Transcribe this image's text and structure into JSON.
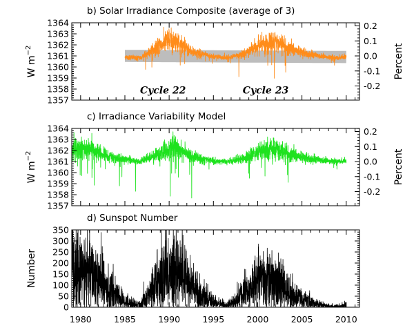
{
  "chart_data": [
    {
      "type": "line",
      "title": "b) Solar Irradiance Composite (average of 3)",
      "ylabel": "W m",
      "ylabel_superscript": "−2",
      "y2label": "Percent",
      "ylim": [
        1357,
        1364
      ],
      "yticks": [
        1357,
        1358,
        1359,
        1360,
        1361,
        1362,
        1363,
        1364
      ],
      "y2lim": [
        -0.2941,
        0.2207
      ],
      "y2ticks": [
        "-0.2",
        "-0.1",
        "0.0",
        "0.1",
        "0.2"
      ],
      "y2tick_values": [
        -0.2,
        -0.1,
        0.0,
        0.1,
        0.2
      ],
      "xlim": [
        1979,
        2011.5
      ],
      "annotations": [
        {
          "text": "Cycle 22",
          "x": 1989.3,
          "y": 1357.6
        },
        {
          "text": "Cycle 23",
          "x": 2000.9,
          "y": 1357.6
        }
      ],
      "series": [
        {
          "name": "composite",
          "color": "#ff8c1a",
          "style": "noisy",
          "x_start": 1985.0,
          "x_end": 2010.0,
          "base": 1360.9,
          "knots": [
            [
              1985.0,
              1360.9
            ],
            [
              1986.7,
              1360.8
            ],
            [
              1988.5,
              1361.7
            ],
            [
              1989.9,
              1362.4
            ],
            [
              1991.0,
              1362.2
            ],
            [
              1992.5,
              1361.4
            ],
            [
              1994.5,
              1361.0
            ],
            [
              1996.6,
              1360.8
            ],
            [
              1998.5,
              1361.2
            ],
            [
              2000.0,
              1361.9
            ],
            [
              2002.0,
              1362.3
            ],
            [
              2003.5,
              1361.7
            ],
            [
              2005.5,
              1361.2
            ],
            [
              2008.7,
              1360.8
            ],
            [
              2010.0,
              1360.9
            ]
          ],
          "noise": 0.3,
          "spike_down": 1.1,
          "spike_down_max": 2.3
        },
        {
          "name": "uncertainty band",
          "color": "#bdbdbd",
          "style": "band",
          "x_start": 1985.0,
          "x_end": 2010.0,
          "lower": [
            [
              1985.0,
              1360.45
            ],
            [
              2010.0,
              1360.35
            ]
          ],
          "upper": [
            [
              1985.0,
              1361.55
            ],
            [
              2010.0,
              1361.45
            ]
          ]
        }
      ]
    },
    {
      "type": "line",
      "title": "c) Irradiance Variability Model",
      "ylabel": "W m",
      "ylabel_superscript": "−2",
      "y2label": "Percent",
      "ylim": [
        1357,
        1364
      ],
      "yticks": [
        1357,
        1358,
        1359,
        1360,
        1361,
        1362,
        1363,
        1364
      ],
      "y2lim": [
        -0.2941,
        0.2207
      ],
      "y2ticks": [
        "-0.2",
        "-0.1",
        "0.0",
        "0.1",
        "0.2"
      ],
      "y2tick_values": [
        -0.2,
        -0.1,
        0.0,
        0.1,
        0.2
      ],
      "xlim": [
        1979,
        2011.5
      ],
      "series": [
        {
          "name": "model",
          "color": "#1ee21e",
          "style": "noisy",
          "x_start": 1979.0,
          "x_end": 2010.0,
          "base": 1361.0,
          "knots": [
            [
              1979.0,
              1362.0
            ],
            [
              1980.5,
              1362.2
            ],
            [
              1982.0,
              1361.8
            ],
            [
              1984.0,
              1361.3
            ],
            [
              1986.7,
              1361.0
            ],
            [
              1988.5,
              1361.6
            ],
            [
              1989.9,
              1362.2
            ],
            [
              1991.0,
              1362.1
            ],
            [
              1992.5,
              1361.5
            ],
            [
              1994.5,
              1361.1
            ],
            [
              1996.6,
              1361.0
            ],
            [
              1998.5,
              1361.3
            ],
            [
              2000.0,
              1361.9
            ],
            [
              2002.0,
              1362.2
            ],
            [
              2003.5,
              1361.7
            ],
            [
              2005.5,
              1361.3
            ],
            [
              2008.7,
              1361.0
            ],
            [
              2010.0,
              1361.05
            ]
          ],
          "noise": 0.35,
          "spike_down": 1.5,
          "spike_down_max": 3.8
        }
      ]
    },
    {
      "type": "line",
      "title": "d) Sunspot Number",
      "ylabel": "Number",
      "ylim": [
        0,
        350
      ],
      "yticks": [
        0,
        50,
        100,
        150,
        200,
        250,
        300,
        350
      ],
      "xlim": [
        1979,
        2011.5
      ],
      "xticks": [
        1980,
        1985,
        1990,
        1995,
        2000,
        2005,
        2010
      ],
      "series": [
        {
          "name": "sunspot number",
          "color": "#000000",
          "style": "sunspot",
          "x_start": 1979.0,
          "x_end": 2010.0,
          "knots": [
            [
              1979.0,
              160
            ],
            [
              1979.9,
              165
            ],
            [
              1981.0,
              150
            ],
            [
              1982.0,
              120
            ],
            [
              1983.0,
              85
            ],
            [
              1984.0,
              55
            ],
            [
              1985.0,
              25
            ],
            [
              1986.0,
              14
            ],
            [
              1986.7,
              10
            ],
            [
              1987.5,
              40
            ],
            [
              1988.5,
              110
            ],
            [
              1989.5,
              160
            ],
            [
              1990.5,
              150
            ],
            [
              1991.5,
              145
            ],
            [
              1992.5,
              95
            ],
            [
              1993.5,
              55
            ],
            [
              1994.5,
              30
            ],
            [
              1995.5,
              17
            ],
            [
              1996.5,
              8
            ],
            [
              1997.5,
              25
            ],
            [
              1998.5,
              70
            ],
            [
              1999.5,
              95
            ],
            [
              2000.5,
              120
            ],
            [
              2001.5,
              110
            ],
            [
              2002.5,
              100
            ],
            [
              2003.5,
              65
            ],
            [
              2004.5,
              42
            ],
            [
              2005.5,
              30
            ],
            [
              2006.5,
              15
            ],
            [
              2007.5,
              7
            ],
            [
              2008.5,
              3
            ],
            [
              2009.5,
              3
            ],
            [
              2010.0,
              12
            ]
          ]
        }
      ]
    }
  ]
}
